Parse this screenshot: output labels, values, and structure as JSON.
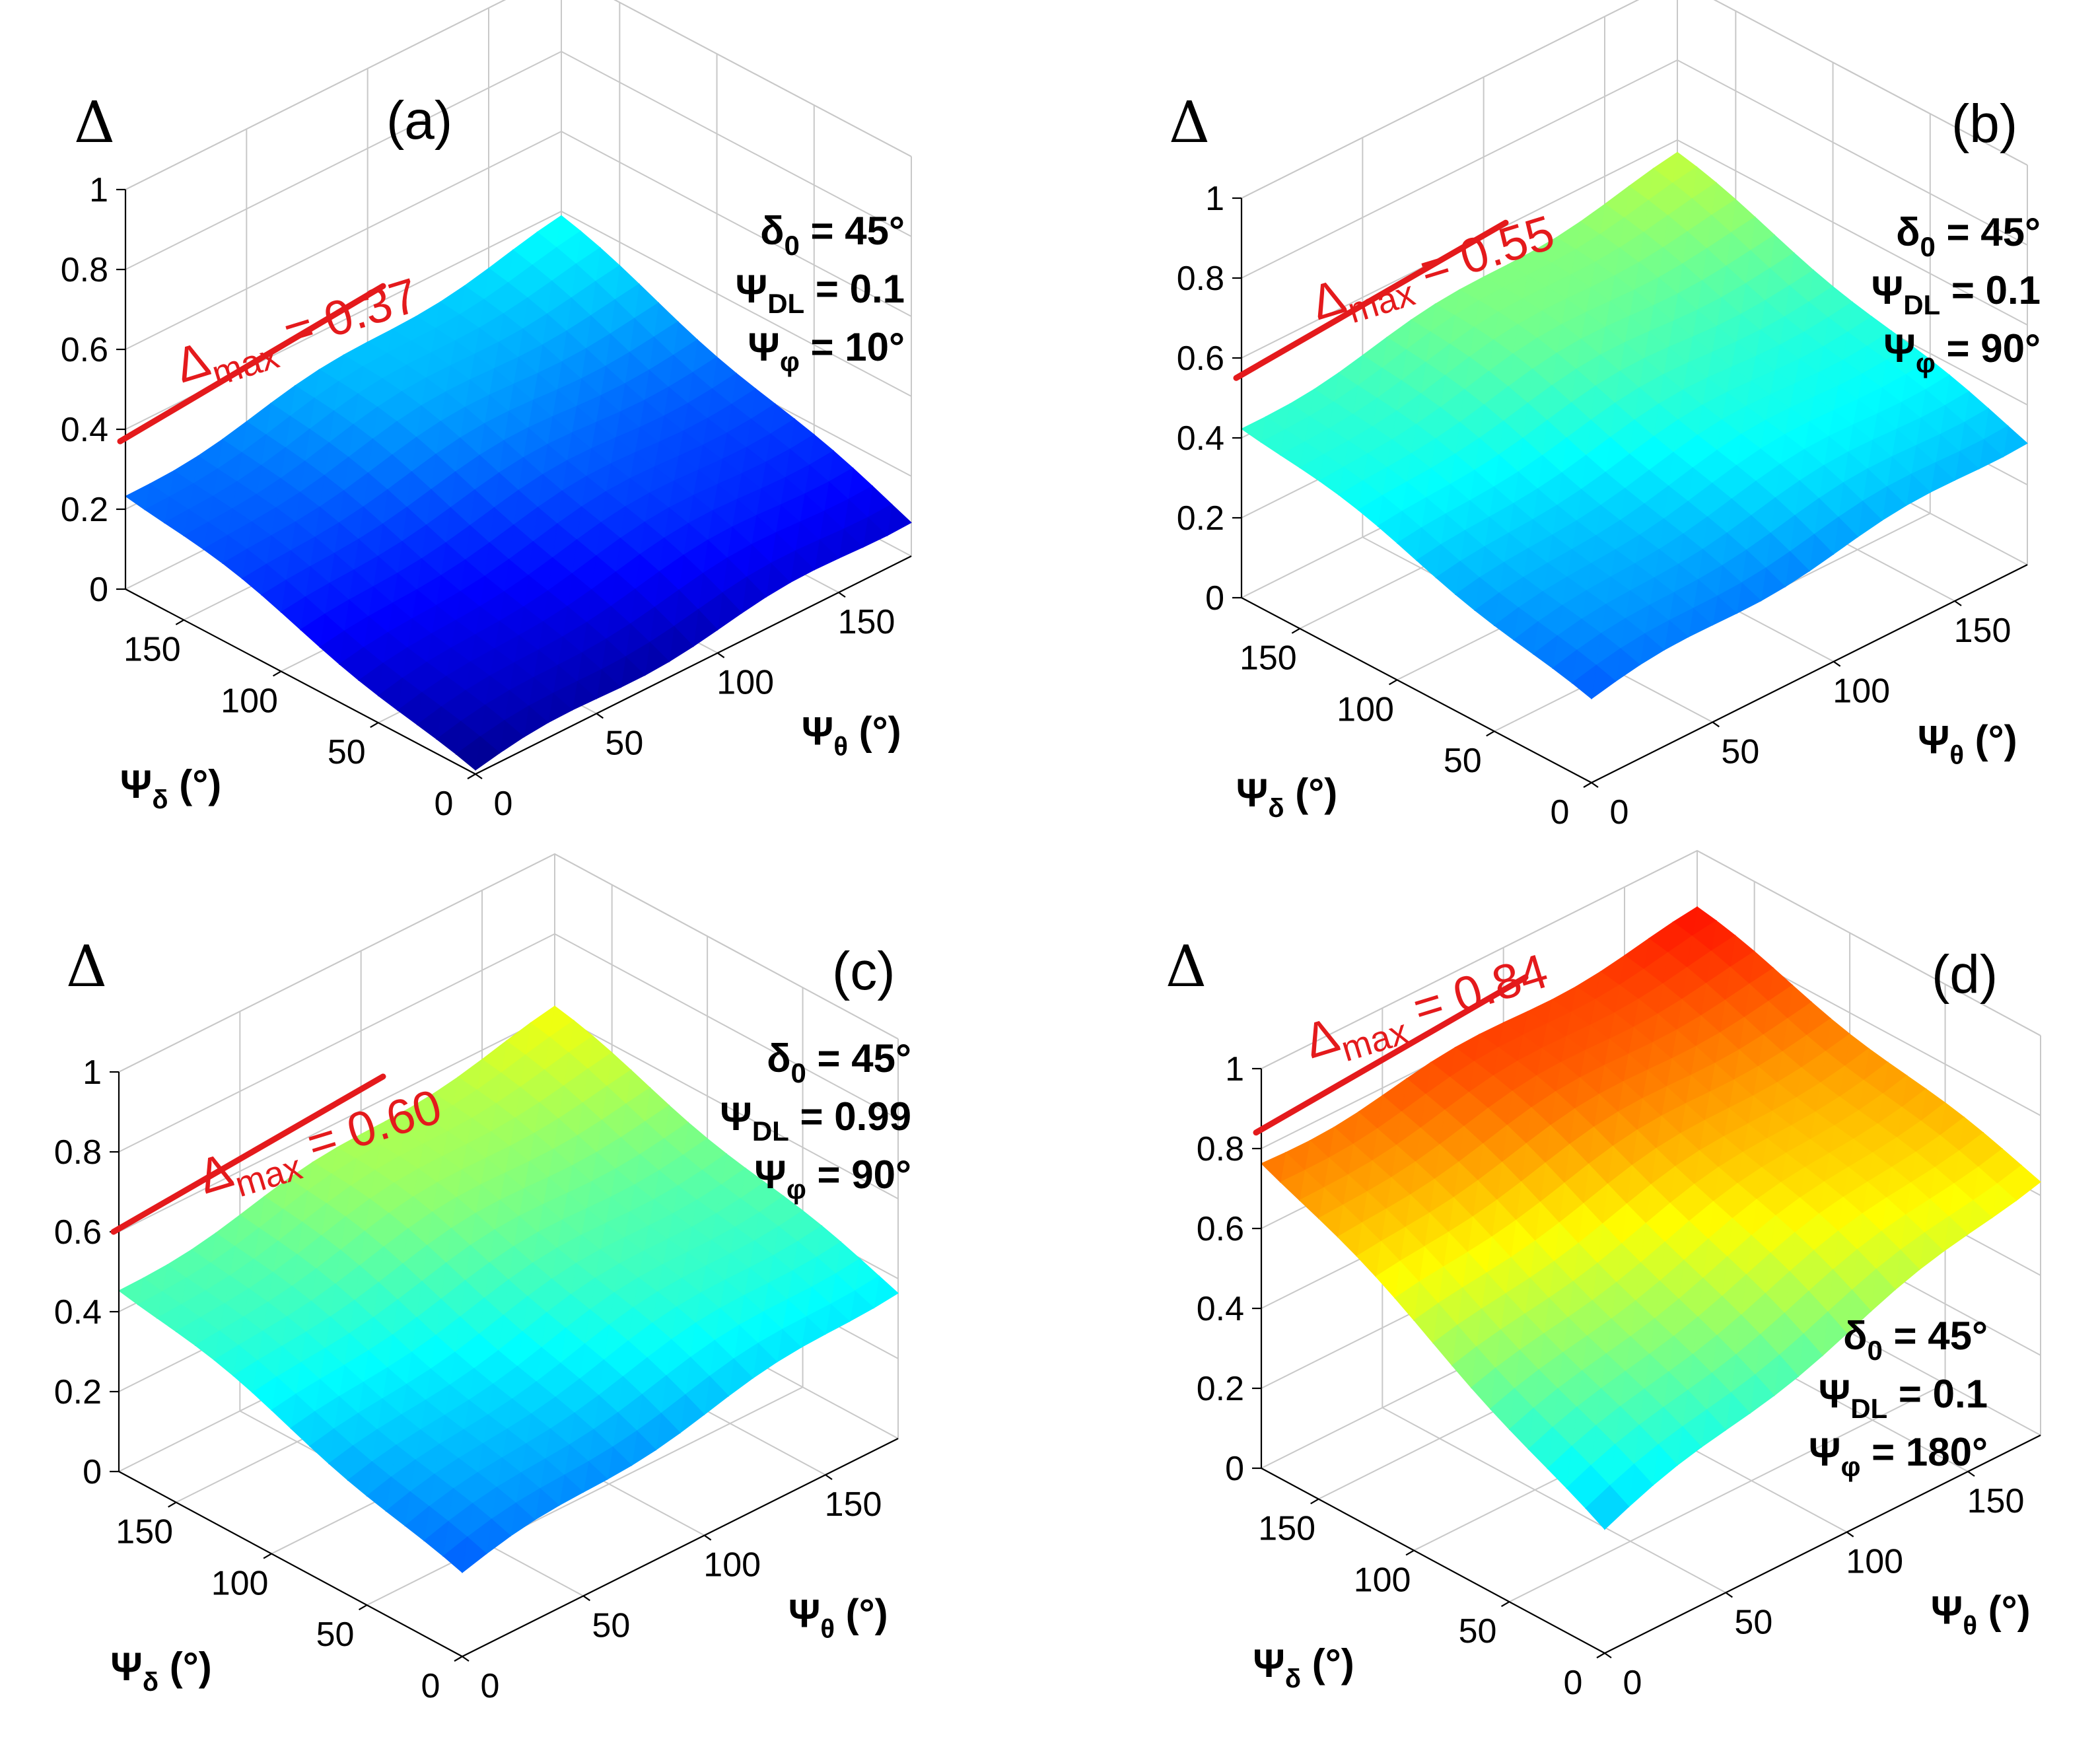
{
  "chart_data": [
    {
      "type": "surface3d",
      "panel_label": "(a)",
      "zlabel": "Δ",
      "x_label_main": "Ψ",
      "x_label_sub": "θ",
      "x_label_unit": "(°)",
      "y_label_main": "Ψ",
      "y_label_sub": "δ",
      "y_label_unit": "(°)",
      "x_ticks": [
        "0",
        "50",
        "100",
        "150"
      ],
      "y_ticks": [
        "0",
        "50",
        "100",
        "150"
      ],
      "z_ticks": [
        "0",
        "0.2",
        "0.4",
        "0.6",
        "0.8",
        "1"
      ],
      "xlim": [
        0,
        180
      ],
      "ylim": [
        0,
        180
      ],
      "zlim": [
        0,
        1
      ],
      "max_line_z": 0.37,
      "max_label_main": "Δ",
      "max_label_sub": "max",
      "max_label_rest": " = 0.37",
      "params": [
        {
          "main": "δ",
          "sub": "0",
          "rest": " = 45°"
        },
        {
          "main": "Ψ",
          "sub": "DL",
          "rest": " = 0.1"
        },
        {
          "main": "Ψ",
          "sub": "φ",
          "rest": " = 10°"
        }
      ],
      "corner_values": {
        "z00": 0.0,
        "zX0": 0.1,
        "z0Y": 0.24,
        "zXY": 0.37
      },
      "color_scale": "jet"
    },
    {
      "type": "surface3d",
      "panel_label": "(b)",
      "zlabel": "Δ",
      "x_label_main": "Ψ",
      "x_label_sub": "θ",
      "x_label_unit": "(°)",
      "y_label_main": "Ψ",
      "y_label_sub": "δ",
      "y_label_unit": "(°)",
      "x_ticks": [
        "0",
        "50",
        "100",
        "150"
      ],
      "y_ticks": [
        "0",
        "50",
        "100",
        "150"
      ],
      "z_ticks": [
        "0",
        "0.2",
        "0.4",
        "0.6",
        "0.8",
        "1"
      ],
      "xlim": [
        0,
        180
      ],
      "ylim": [
        0,
        180
      ],
      "zlim": [
        0,
        1
      ],
      "max_line_z": 0.55,
      "max_label_main": "Δ",
      "max_label_sub": "max",
      "max_label_rest": " = 0.55",
      "params": [
        {
          "main": "δ",
          "sub": "0",
          "rest": " = 45°"
        },
        {
          "main": "Ψ",
          "sub": "DL",
          "rest": " = 0.1"
        },
        {
          "main": "Ψ",
          "sub": "φ",
          "rest": " = 90°"
        }
      ],
      "corner_values": {
        "z00": 0.2,
        "zX0": 0.32,
        "z0Y": 0.43,
        "zXY": 0.55
      },
      "color_scale": "jet"
    },
    {
      "type": "surface3d",
      "panel_label": "(c)",
      "zlabel": "Δ",
      "x_label_main": "Ψ",
      "x_label_sub": "θ",
      "x_label_unit": "(°)",
      "y_label_main": "Ψ",
      "y_label_sub": "δ",
      "y_label_unit": "(°)",
      "x_ticks": [
        "0",
        "50",
        "100",
        "150"
      ],
      "y_ticks": [
        "0",
        "50",
        "100",
        "150"
      ],
      "z_ticks": [
        "0",
        "0.2",
        "0.4",
        "0.6",
        "0.8",
        "1"
      ],
      "xlim": [
        0,
        180
      ],
      "ylim": [
        0,
        180
      ],
      "zlim": [
        0,
        1
      ],
      "max_line_z": 0.6,
      "max_label_main": "Δ",
      "max_label_sub": "max",
      "max_label_rest": " = 0.60",
      "params": [
        {
          "main": "δ",
          "sub": "0",
          "rest": " = 45°"
        },
        {
          "main": "Ψ",
          "sub": "DL",
          "rest": " = 0.99"
        },
        {
          "main": "Ψ",
          "sub": "φ",
          "rest": " = 90°"
        }
      ],
      "corner_values": {
        "z00": 0.2,
        "zX0": 0.38,
        "z0Y": 0.46,
        "zXY": 0.6
      },
      "color_scale": "jet"
    },
    {
      "type": "surface3d",
      "panel_label": "(d)",
      "zlabel": "Δ",
      "x_label_main": "Ψ",
      "x_label_sub": "θ",
      "x_label_unit": "(°)",
      "y_label_main": "Ψ",
      "y_label_sub": "δ",
      "y_label_unit": "(°)",
      "x_ticks": [
        "0",
        "50",
        "100",
        "150"
      ],
      "y_ticks": [
        "0",
        "50",
        "100",
        "150"
      ],
      "z_ticks": [
        "0",
        "0.2",
        "0.4",
        "0.6",
        "0.8",
        "1"
      ],
      "xlim": [
        0,
        180
      ],
      "ylim": [
        0,
        180
      ],
      "zlim": [
        0,
        1
      ],
      "max_line_z": 0.84,
      "max_label_main": "Δ",
      "max_label_sub": "max",
      "max_label_rest": " = 0.84",
      "params": [
        {
          "main": "δ",
          "sub": "0",
          "rest": " = 45°"
        },
        {
          "main": "Ψ",
          "sub": "DL",
          "rest": " = 0.1"
        },
        {
          "main": "Ψ",
          "sub": "φ",
          "rest": " = 180°"
        }
      ],
      "corner_values": {
        "z00": 0.3,
        "zX0": 0.65,
        "z0Y": 0.77,
        "zXY": 0.84
      },
      "color_scale": "jet"
    }
  ]
}
